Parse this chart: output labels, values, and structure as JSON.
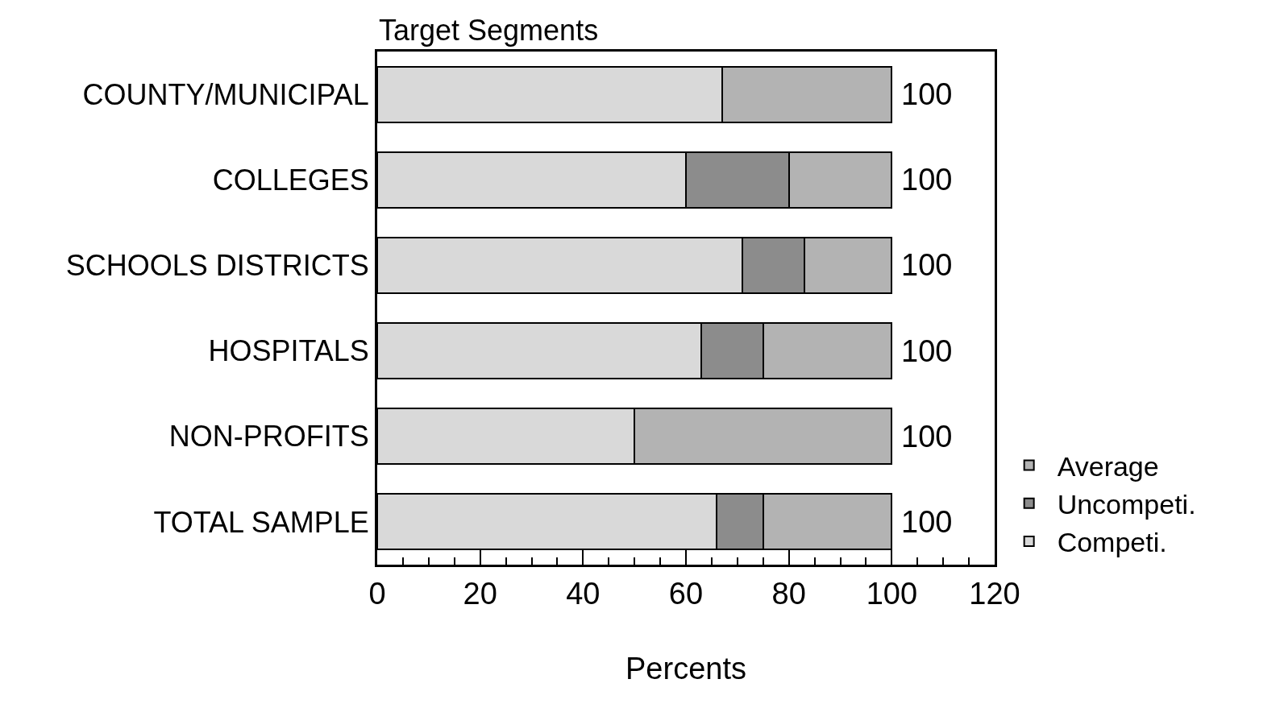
{
  "chart_data": {
    "type": "bar",
    "orientation": "horizontal",
    "stacked": true,
    "title": "Target Segments",
    "xlabel": "Percents",
    "categories": [
      "COUNTY/MUNICIPAL",
      "COLLEGES",
      "SCHOOLS DISTRICTS",
      "HOSPITALS",
      "NON-PROFITS",
      "TOTAL SAMPLE"
    ],
    "series": [
      {
        "name": "Competi.",
        "color": "#d9d9d9",
        "values": [
          67,
          60,
          71,
          63,
          50,
          66
        ]
      },
      {
        "name": "Uncompeti.",
        "color": "#8c8c8c",
        "values": [
          0,
          20,
          12,
          12,
          0,
          9
        ]
      },
      {
        "name": "Average",
        "color": "#b3b3b3",
        "values": [
          33,
          20,
          17,
          25,
          50,
          25
        ]
      }
    ],
    "totals": [
      "100",
      "100",
      "100",
      "100",
      "100",
      "100"
    ],
    "xlim": [
      0,
      120
    ],
    "xticks": [
      0,
      20,
      40,
      60,
      80,
      100,
      120
    ],
    "legend": "bottom right"
  }
}
